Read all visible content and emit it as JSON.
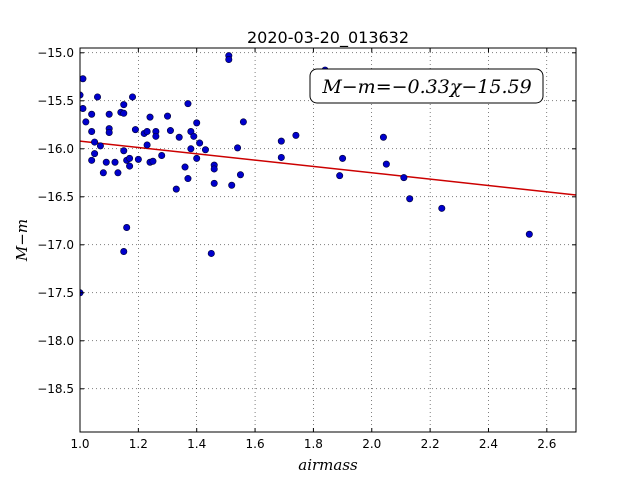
{
  "chart_data": {
    "type": "scatter",
    "title": "2020-03-20_013632",
    "xlabel": "airmass",
    "ylabel": "M−m",
    "xlim": [
      1.0,
      2.7
    ],
    "ylim": [
      -18.95,
      -14.95
    ],
    "xticks": [
      1.0,
      1.2,
      1.4,
      1.6,
      1.8,
      2.0,
      2.2,
      2.4,
      2.6
    ],
    "xtick_labels": [
      "1.0",
      "1.2",
      "1.4",
      "1.6",
      "1.8",
      "2.0",
      "2.2",
      "2.4",
      "2.6"
    ],
    "yticks": [
      -15.0,
      -15.5,
      -16.0,
      -16.5,
      -17.0,
      -17.5,
      -18.0,
      -18.5
    ],
    "ytick_labels": [
      "−15.0",
      "−15.5",
      "−16.0",
      "−16.5",
      "−17.0",
      "−17.5",
      "−18.0",
      "−18.5"
    ],
    "grid": true,
    "annotation": "M−m=−0.33χ−15.59",
    "point_color": "#0000cc",
    "fit_color": "#cc0000",
    "fit": {
      "slope": -0.33,
      "intercept": -15.59
    },
    "points": [
      {
        "x": 1.0,
        "y": -15.44
      },
      {
        "x": 1.01,
        "y": -15.27
      },
      {
        "x": 1.01,
        "y": -15.58
      },
      {
        "x": 1.02,
        "y": -15.72
      },
      {
        "x": 1.04,
        "y": -15.82
      },
      {
        "x": 1.04,
        "y": -16.12
      },
      {
        "x": 1.04,
        "y": -15.64
      },
      {
        "x": 1.05,
        "y": -15.93
      },
      {
        "x": 1.05,
        "y": -16.05
      },
      {
        "x": 1.06,
        "y": -15.46
      },
      {
        "x": 1.07,
        "y": -15.97
      },
      {
        "x": 1.08,
        "y": -16.25
      },
      {
        "x": 1.09,
        "y": -16.14
      },
      {
        "x": 1.1,
        "y": -15.64
      },
      {
        "x": 1.1,
        "y": -15.79
      },
      {
        "x": 1.1,
        "y": -15.83
      },
      {
        "x": 1.12,
        "y": -16.14
      },
      {
        "x": 1.13,
        "y": -16.25
      },
      {
        "x": 1.14,
        "y": -15.62
      },
      {
        "x": 1.15,
        "y": -15.54
      },
      {
        "x": 1.15,
        "y": -15.63
      },
      {
        "x": 1.15,
        "y": -17.07
      },
      {
        "x": 1.15,
        "y": -16.02
      },
      {
        "x": 1.16,
        "y": -16.82
      },
      {
        "x": 1.16,
        "y": -16.12
      },
      {
        "x": 1.17,
        "y": -16.18
      },
      {
        "x": 1.17,
        "y": -16.1
      },
      {
        "x": 1.18,
        "y": -15.46
      },
      {
        "x": 1.19,
        "y": -15.8
      },
      {
        "x": 1.2,
        "y": -16.11
      },
      {
        "x": 1.22,
        "y": -15.84
      },
      {
        "x": 1.23,
        "y": -15.82
      },
      {
        "x": 1.23,
        "y": -15.96
      },
      {
        "x": 1.24,
        "y": -15.67
      },
      {
        "x": 1.24,
        "y": -16.14
      },
      {
        "x": 1.25,
        "y": -16.13
      },
      {
        "x": 1.26,
        "y": -15.82
      },
      {
        "x": 1.26,
        "y": -15.87
      },
      {
        "x": 1.28,
        "y": -16.07
      },
      {
        "x": 1.3,
        "y": -15.66
      },
      {
        "x": 1.31,
        "y": -15.81
      },
      {
        "x": 1.33,
        "y": -16.42
      },
      {
        "x": 1.34,
        "y": -15.88
      },
      {
        "x": 1.36,
        "y": -16.19
      },
      {
        "x": 1.37,
        "y": -15.53
      },
      {
        "x": 1.37,
        "y": -16.31
      },
      {
        "x": 1.38,
        "y": -16.0
      },
      {
        "x": 1.38,
        "y": -15.82
      },
      {
        "x": 1.39,
        "y": -15.87
      },
      {
        "x": 1.4,
        "y": -15.73
      },
      {
        "x": 1.4,
        "y": -16.1
      },
      {
        "x": 1.41,
        "y": -15.94
      },
      {
        "x": 1.43,
        "y": -16.01
      },
      {
        "x": 1.45,
        "y": -17.09
      },
      {
        "x": 1.46,
        "y": -16.36
      },
      {
        "x": 1.46,
        "y": -16.17
      },
      {
        "x": 1.46,
        "y": -16.21
      },
      {
        "x": 1.51,
        "y": -15.03
      },
      {
        "x": 1.51,
        "y": -15.07
      },
      {
        "x": 1.52,
        "y": -16.38
      },
      {
        "x": 1.54,
        "y": -15.99
      },
      {
        "x": 1.55,
        "y": -16.27
      },
      {
        "x": 1.56,
        "y": -15.72
      },
      {
        "x": 1.69,
        "y": -16.09
      },
      {
        "x": 1.69,
        "y": -15.92
      },
      {
        "x": 1.74,
        "y": -15.86
      },
      {
        "x": 1.84,
        "y": -15.18
      },
      {
        "x": 1.89,
        "y": -16.28
      },
      {
        "x": 1.9,
        "y": -16.1
      },
      {
        "x": 2.04,
        "y": -15.88
      },
      {
        "x": 2.05,
        "y": -16.16
      },
      {
        "x": 2.11,
        "y": -16.3
      },
      {
        "x": 2.13,
        "y": -16.52
      },
      {
        "x": 2.24,
        "y": -16.62
      },
      {
        "x": 2.54,
        "y": -16.89
      },
      {
        "x": 1.0,
        "y": -17.5
      }
    ]
  }
}
